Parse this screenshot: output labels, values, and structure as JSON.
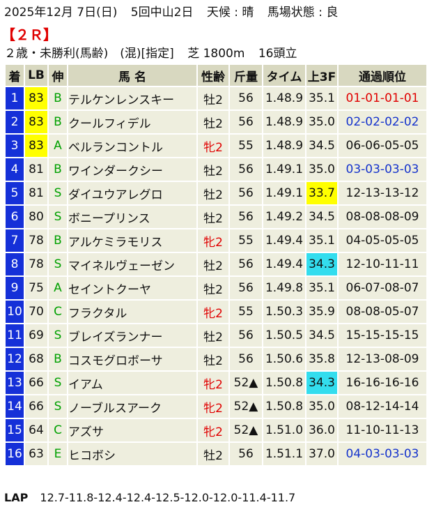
{
  "race_info": {
    "date": "2025年12月 7日(日)",
    "meeting": "5回中山2日",
    "weather": "天候 : 晴",
    "track_condition": "馬場状態 : 良",
    "race_number": "【２Ｒ】",
    "race_class": "２歳・未勝利(馬齢)　(混)[指定]",
    "course": "芝 1800m",
    "field_size": "16頭立"
  },
  "colors": {
    "horse_number_bg": "#1530d8",
    "header_bg": "#d8d8c0",
    "row_bg": "#eeeede",
    "highlight_yellow": "#ffff00",
    "highlight_cyan": "#33ddee",
    "female_red": "#e00000",
    "pass_blue": "#1533cc",
    "style_green": "#00a000"
  },
  "table": {
    "headers": [
      "着",
      "LB",
      "伸",
      "馬 名",
      "性齢",
      "斤量",
      "タイム",
      "上3F",
      "通過順位"
    ],
    "rows": [
      {
        "no": "1",
        "lb": "83",
        "style": "B",
        "name": "テルケンレンスキー",
        "sex_age": "牡2",
        "weight": "56",
        "time": "1.48.9",
        "last3f": "35.1",
        "passing": "01-01-01-01"
      },
      {
        "no": "2",
        "lb": "83",
        "style": "B",
        "name": "クールフィデル",
        "sex_age": "牡2",
        "weight": "56",
        "time": "1.48.9",
        "last3f": "35.0",
        "passing": "02-02-02-02"
      },
      {
        "no": "3",
        "lb": "83",
        "style": "A",
        "name": "ベルランコントル",
        "sex_age": "牝2",
        "weight": "55",
        "time": "1.48.9",
        "last3f": "34.5",
        "passing": "06-06-05-05"
      },
      {
        "no": "4",
        "lb": "81",
        "style": "B",
        "name": "ワインダークシー",
        "sex_age": "牡2",
        "weight": "56",
        "time": "1.49.1",
        "last3f": "35.0",
        "passing": "03-03-03-03"
      },
      {
        "no": "5",
        "lb": "81",
        "style": "S",
        "name": "ダイユウアレグロ",
        "sex_age": "牡2",
        "weight": "56",
        "time": "1.49.1",
        "last3f": "33.7",
        "passing": "12-13-13-12"
      },
      {
        "no": "6",
        "lb": "80",
        "style": "S",
        "name": "ボニープリンス",
        "sex_age": "牡2",
        "weight": "56",
        "time": "1.49.2",
        "last3f": "34.5",
        "passing": "08-08-08-09"
      },
      {
        "no": "7",
        "lb": "78",
        "style": "B",
        "name": "アルケミラモリス",
        "sex_age": "牝2",
        "weight": "55",
        "time": "1.49.4",
        "last3f": "35.1",
        "passing": "04-05-05-05"
      },
      {
        "no": "8",
        "lb": "78",
        "style": "S",
        "name": "マイネルヴェーゼン",
        "sex_age": "牡2",
        "weight": "56",
        "time": "1.49.4",
        "last3f": "34.3",
        "passing": "12-10-11-11"
      },
      {
        "no": "9",
        "lb": "75",
        "style": "A",
        "name": "セイントクーヤ",
        "sex_age": "牡2",
        "weight": "56",
        "time": "1.49.8",
        "last3f": "35.1",
        "passing": "06-07-08-07"
      },
      {
        "no": "10",
        "lb": "70",
        "style": "C",
        "name": "フラクタル",
        "sex_age": "牝2",
        "weight": "55",
        "time": "1.50.3",
        "last3f": "35.9",
        "passing": "08-08-05-07"
      },
      {
        "no": "11",
        "lb": "69",
        "style": "S",
        "name": "ブレイズランナー",
        "sex_age": "牡2",
        "weight": "56",
        "time": "1.50.5",
        "last3f": "34.5",
        "passing": "15-15-15-15"
      },
      {
        "no": "12",
        "lb": "68",
        "style": "B",
        "name": "コスモグロボーサ",
        "sex_age": "牡2",
        "weight": "56",
        "time": "1.50.6",
        "last3f": "35.8",
        "passing": "12-13-08-09"
      },
      {
        "no": "13",
        "lb": "66",
        "style": "S",
        "name": "イアム",
        "sex_age": "牝2",
        "weight": "52▲",
        "time": "1.50.8",
        "last3f": "34.3",
        "passing": "16-16-16-16"
      },
      {
        "no": "14",
        "lb": "66",
        "style": "S",
        "name": "ノーブルスアーク",
        "sex_age": "牝2",
        "weight": "52▲",
        "time": "1.50.8",
        "last3f": "35.0",
        "passing": "08-12-14-14"
      },
      {
        "no": "15",
        "lb": "64",
        "style": "C",
        "name": "アズサ",
        "sex_age": "牝2",
        "weight": "52▲",
        "time": "1.51.0",
        "last3f": "36.0",
        "passing": "11-10-11-13"
      },
      {
        "no": "16",
        "lb": "63",
        "style": "E",
        "name": "ヒコボシ",
        "sex_age": "牡2",
        "weight": "56",
        "time": "1.51.1",
        "last3f": "37.0",
        "passing": "04-03-03-03"
      }
    ]
  },
  "lap": {
    "label": "LAP",
    "times": "12.7-11.8-12.4-12.4-12.5-12.0-12.0-11.4-11.7"
  }
}
